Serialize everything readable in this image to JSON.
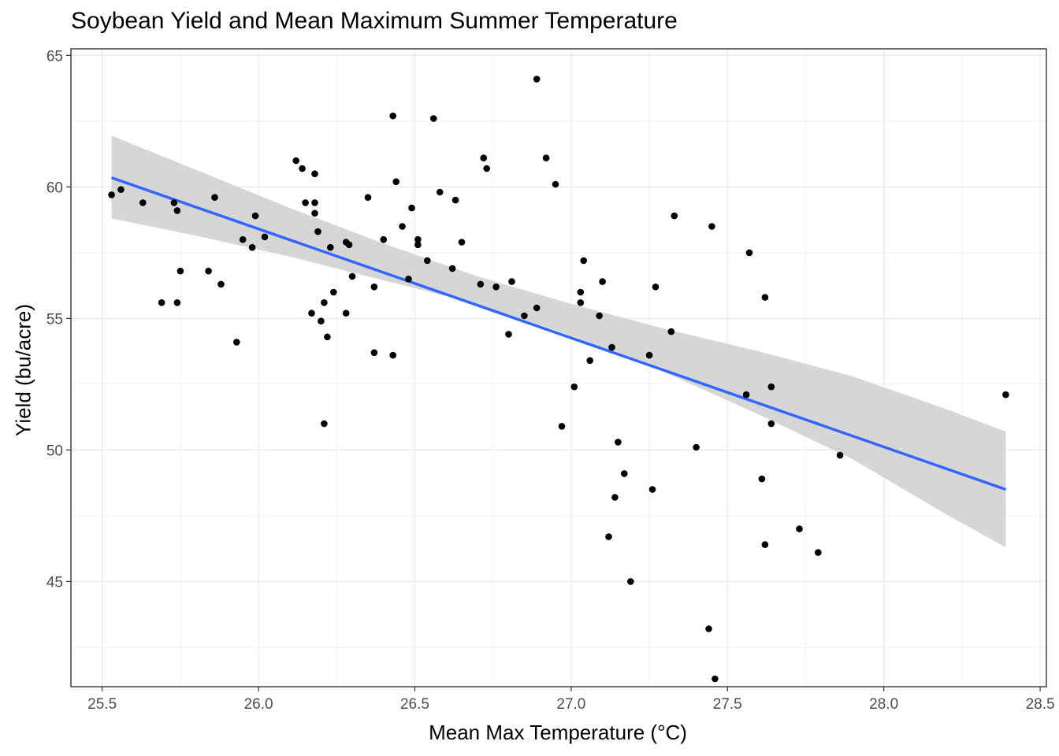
{
  "chart_data": {
    "type": "scatter",
    "title": "Soybean Yield and Mean Maximum Summer Temperature",
    "xlabel": "Mean Max Temperature (°C)",
    "ylabel": "Yield (bu/acre)",
    "xlim": [
      25.4,
      28.52
    ],
    "ylim": [
      41,
      65.25
    ],
    "x_ticks": [
      "25.5",
      "26.0",
      "26.5",
      "27.0",
      "27.5",
      "28.0",
      "28.5"
    ],
    "y_ticks": [
      "45",
      "50",
      "55",
      "60",
      "65"
    ],
    "grid": true,
    "legend": "none",
    "point_color": "#000000",
    "trend_color": "#3366ff",
    "band_color": "#d4d4d4",
    "points": [
      [
        25.53,
        59.7
      ],
      [
        25.56,
        59.9
      ],
      [
        25.63,
        59.4
      ],
      [
        25.69,
        55.6
      ],
      [
        25.73,
        59.4
      ],
      [
        25.74,
        59.1
      ],
      [
        25.74,
        55.6
      ],
      [
        25.75,
        56.8
      ],
      [
        25.84,
        56.8
      ],
      [
        25.86,
        59.6
      ],
      [
        25.88,
        56.3
      ],
      [
        25.93,
        54.1
      ],
      [
        25.95,
        58.0
      ],
      [
        25.98,
        57.7
      ],
      [
        25.99,
        58.9
      ],
      [
        26.02,
        58.1
      ],
      [
        26.12,
        61.0
      ],
      [
        26.14,
        60.7
      ],
      [
        26.15,
        59.4
      ],
      [
        26.17,
        55.2
      ],
      [
        26.18,
        59.4
      ],
      [
        26.18,
        59.0
      ],
      [
        26.18,
        60.5
      ],
      [
        26.19,
        58.3
      ],
      [
        26.2,
        54.9
      ],
      [
        26.21,
        55.6
      ],
      [
        26.21,
        51.0
      ],
      [
        26.22,
        54.3
      ],
      [
        26.23,
        57.7
      ],
      [
        26.24,
        56.0
      ],
      [
        26.28,
        55.2
      ],
      [
        26.28,
        57.9
      ],
      [
        26.29,
        57.8
      ],
      [
        26.3,
        56.6
      ],
      [
        26.35,
        59.6
      ],
      [
        26.37,
        53.7
      ],
      [
        26.37,
        56.2
      ],
      [
        26.4,
        58.0
      ],
      [
        26.43,
        62.7
      ],
      [
        26.43,
        53.6
      ],
      [
        26.44,
        60.2
      ],
      [
        26.46,
        58.5
      ],
      [
        26.48,
        56.5
      ],
      [
        26.49,
        59.2
      ],
      [
        26.51,
        57.8
      ],
      [
        26.51,
        58.0
      ],
      [
        26.54,
        57.2
      ],
      [
        26.56,
        62.6
      ],
      [
        26.58,
        59.8
      ],
      [
        26.62,
        56.9
      ],
      [
        26.63,
        59.5
      ],
      [
        26.65,
        57.9
      ],
      [
        26.71,
        56.3
      ],
      [
        26.72,
        61.1
      ],
      [
        26.73,
        60.7
      ],
      [
        26.76,
        56.2
      ],
      [
        26.8,
        54.4
      ],
      [
        26.81,
        56.4
      ],
      [
        26.85,
        55.1
      ],
      [
        26.89,
        64.1
      ],
      [
        26.89,
        55.4
      ],
      [
        26.92,
        61.1
      ],
      [
        26.95,
        60.1
      ],
      [
        26.97,
        50.9
      ],
      [
        27.01,
        52.4
      ],
      [
        27.03,
        55.6
      ],
      [
        27.03,
        56.0
      ],
      [
        27.04,
        57.2
      ],
      [
        27.06,
        53.4
      ],
      [
        27.09,
        55.1
      ],
      [
        27.1,
        56.4
      ],
      [
        27.12,
        46.7
      ],
      [
        27.13,
        53.9
      ],
      [
        27.14,
        48.2
      ],
      [
        27.15,
        50.3
      ],
      [
        27.17,
        49.1
      ],
      [
        27.19,
        45.0
      ],
      [
        27.25,
        53.6
      ],
      [
        27.26,
        48.5
      ],
      [
        27.27,
        56.2
      ],
      [
        27.32,
        54.5
      ],
      [
        27.33,
        58.9
      ],
      [
        27.4,
        50.1
      ],
      [
        27.44,
        43.2
      ],
      [
        27.45,
        58.5
      ],
      [
        27.46,
        41.3
      ],
      [
        27.56,
        52.1
      ],
      [
        27.57,
        57.5
      ],
      [
        27.61,
        48.9
      ],
      [
        27.62,
        55.8
      ],
      [
        27.62,
        46.4
      ],
      [
        27.64,
        52.4
      ],
      [
        27.64,
        51.0
      ],
      [
        27.73,
        47.0
      ],
      [
        27.79,
        46.1
      ],
      [
        27.86,
        49.8
      ],
      [
        28.39,
        52.1
      ]
    ],
    "trend": {
      "x": [
        25.53,
        28.39
      ],
      "y": [
        60.35,
        48.5
      ]
    },
    "band": {
      "x": [
        25.53,
        25.8,
        26.1,
        26.4,
        26.7,
        27.0,
        27.3,
        27.6,
        27.9,
        28.2,
        28.39
      ],
      "upper": [
        61.95,
        60.65,
        59.2,
        57.85,
        56.6,
        55.55,
        54.6,
        53.75,
        52.8,
        51.55,
        50.7
      ],
      "lower": [
        58.8,
        58.15,
        57.35,
        56.45,
        55.55,
        54.35,
        52.95,
        51.35,
        49.65,
        47.55,
        46.3
      ]
    }
  }
}
